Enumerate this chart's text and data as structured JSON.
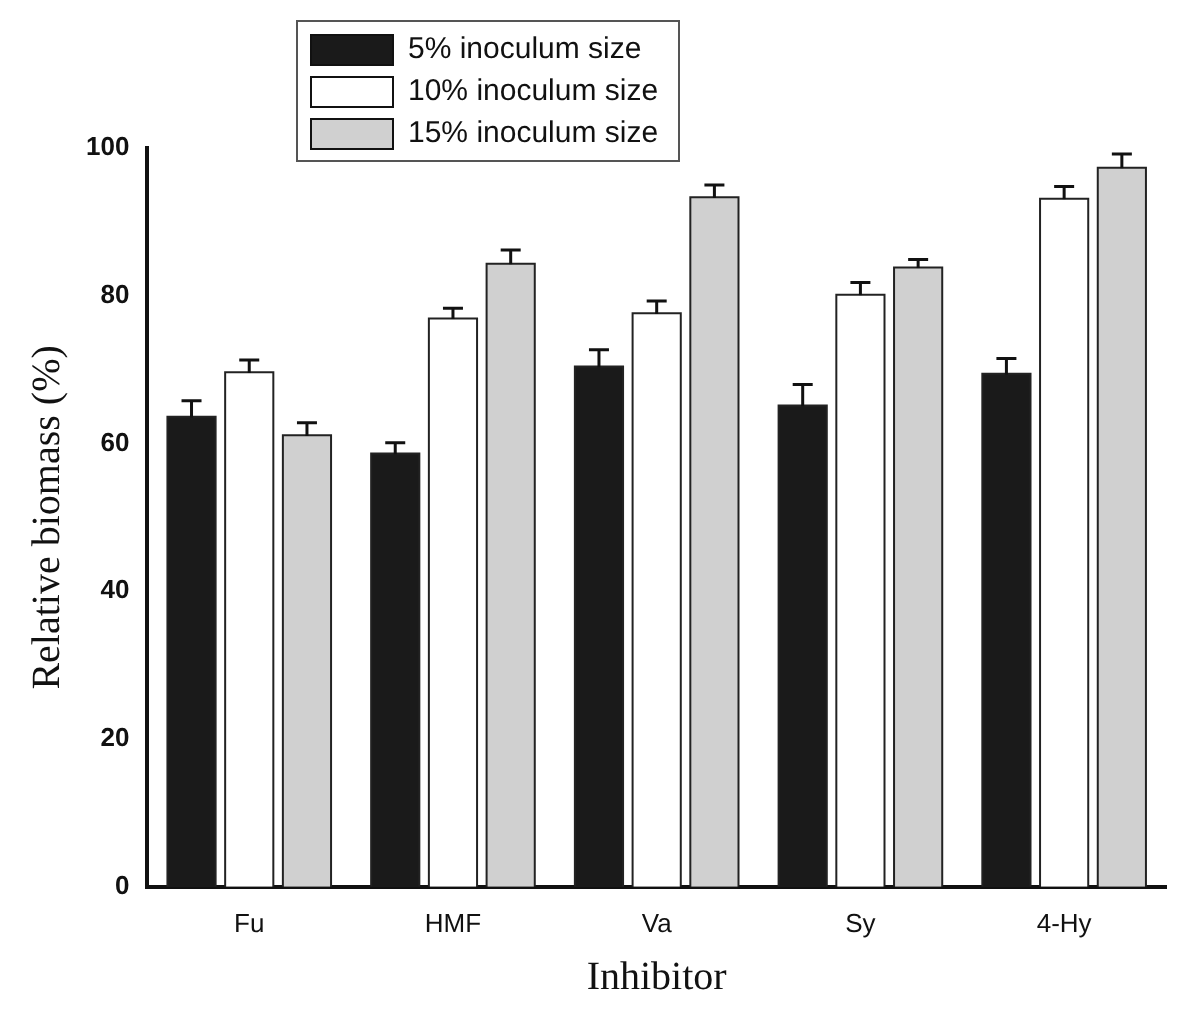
{
  "chart_data": {
    "type": "bar",
    "xlabel": "Inhibitor",
    "ylabel": "Relative biomass (%)",
    "categories": [
      "Fu",
      "HMF",
      "Va",
      "Sy",
      "4-Hy"
    ],
    "series": [
      {
        "name": "5% inoculum size",
        "color": "#1a1a1a",
        "values": [
          63.5,
          58.5,
          70.3,
          65,
          69.3
        ],
        "errors": [
          2.3,
          1.6,
          2.4,
          3,
          2.2
        ]
      },
      {
        "name": "10% inoculum size",
        "color": "#ffffff",
        "values": [
          69.5,
          76.8,
          77.5,
          80,
          93
        ],
        "errors": [
          1.8,
          1.5,
          1.8,
          1.8,
          1.8
        ]
      },
      {
        "name": "15% inoculum size",
        "color": "#d0d0d0",
        "values": [
          61,
          84.2,
          93.2,
          83.7,
          97.2
        ],
        "errors": [
          1.8,
          2,
          1.8,
          1.2,
          2
        ]
      }
    ],
    "ylim": [
      0,
      100
    ],
    "yticks": [
      0,
      20,
      40,
      60,
      80,
      100
    ],
    "grid": false,
    "legend": "top left"
  }
}
